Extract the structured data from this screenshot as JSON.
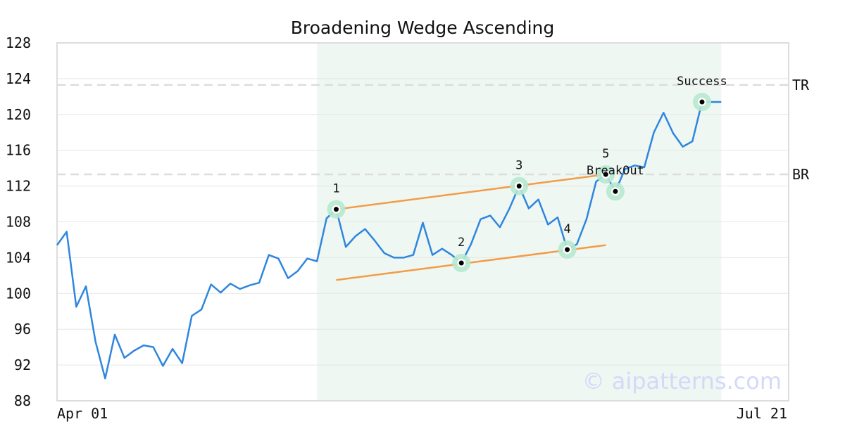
{
  "chart_data": {
    "type": "line",
    "title": "Broadening Wedge Ascending",
    "ylim": [
      88,
      128
    ],
    "yticks": [
      88,
      92,
      96,
      100,
      104,
      108,
      112,
      116,
      120,
      124,
      128
    ],
    "grid": true,
    "xlim": [
      0,
      76
    ],
    "xtick_labels": [
      "Apr 01",
      "Jul 21"
    ],
    "series": [
      {
        "values": [
          105.4,
          106.9,
          98.5,
          100.8,
          94.6,
          90.5,
          95.4,
          92.8,
          93.6,
          94.2,
          94.0,
          91.9,
          93.8,
          92.2,
          97.5,
          98.2,
          101.0,
          100.1,
          101.1,
          100.5,
          100.9,
          101.2,
          104.3,
          103.9,
          101.7,
          102.5,
          103.9,
          103.6,
          108.4,
          109.4,
          105.2,
          106.4,
          107.2,
          105.9,
          104.5,
          104.0,
          104.0,
          104.3,
          107.9,
          104.3,
          105.0,
          104.3,
          103.4,
          105.5,
          108.3,
          108.7,
          107.4,
          109.5,
          112.0,
          109.5,
          110.5,
          107.7,
          108.5,
          104.9,
          105.5,
          108.3,
          112.5,
          113.3,
          111.4,
          113.9,
          114.3,
          114.1,
          118.0,
          120.2,
          117.9,
          116.4,
          117.0,
          121.4,
          121.4,
          121.4
        ]
      }
    ],
    "shaded_region": [
      27,
      69
    ],
    "trendlines": [
      {
        "points": [
          [
            29,
            109.4
          ],
          [
            57,
            113.3
          ]
        ]
      },
      {
        "points": [
          [
            29,
            101.5
          ],
          [
            57,
            105.4
          ]
        ]
      }
    ],
    "levels": [
      {
        "label": "TR",
        "value": 123.3
      },
      {
        "label": "BR",
        "value": 113.3
      }
    ],
    "pivots": [
      {
        "label": "1",
        "x": 29,
        "y": 109.4
      },
      {
        "label": "2",
        "x": 42,
        "y": 103.4
      },
      {
        "label": "3",
        "x": 48,
        "y": 112.0
      },
      {
        "label": "4",
        "x": 53,
        "y": 104.9
      },
      {
        "label": "5",
        "x": 57,
        "y": 113.3
      }
    ],
    "events": [
      {
        "label": "BreakOut",
        "x": 58,
        "y": 111.4
      },
      {
        "label": "Success",
        "x": 67,
        "y": 121.4
      }
    ],
    "watermark": "© aipatterns.com",
    "colors": {
      "line": "#2e86de",
      "trendline": "#f39c45",
      "marker_halo": "#b6e8cf",
      "shade": "#eef7f2",
      "level": "#dddddd",
      "grid": "#e6e6e6",
      "frame": "#dddddd"
    }
  }
}
